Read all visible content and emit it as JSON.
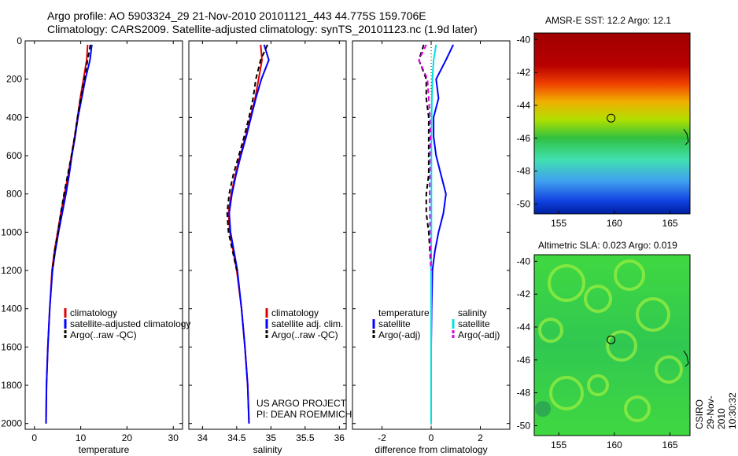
{
  "header": {
    "line1": "Argo profile: AO 5903324_29 21-Nov-2010 20101121_443 44.775S 159.706E",
    "line2": "Climatology: CARS2009. Satellite-adjusted climatology: synTS_20101123.nc (1.9d later)"
  },
  "credit": {
    "project": "US ARGO PROJECT",
    "pi": "PI: DEAN ROEMMICH"
  },
  "side_label": "CSIRO 29-Nov-2010 10:30:32",
  "colors": {
    "climatology": "#e00000",
    "satellite": "#0000ff",
    "argo_temp": "#000000",
    "satellite_sal": "#00e0e0",
    "argo_sal": "#e000e0"
  },
  "depth_ticks": [
    "0",
    "200",
    "400",
    "600",
    "800",
    "1000",
    "1200",
    "1400",
    "1600",
    "1800",
    "2000"
  ],
  "panels": {
    "temperature": {
      "xlabel": "temperature",
      "xticks": [
        "0",
        "10",
        "20",
        "30"
      ],
      "legend": [
        "climatology",
        "satellite-adjusted climatology",
        "Argo(..raw -QC)"
      ]
    },
    "salinity": {
      "xlabel": "salinity",
      "xticks": [
        "34",
        "34.5",
        "35",
        "35.5",
        "36"
      ],
      "legend": [
        "climatology",
        "satellite adj. clim.",
        "Argo(..raw -QC)"
      ]
    },
    "difference": {
      "xlabel": "difference from climatology",
      "xticks": [
        "-2",
        "0",
        "2"
      ],
      "legend_temp_head": "temperature",
      "legend_temp": [
        "satellite",
        "Argo(-adj)"
      ],
      "legend_sal_head": "salinity",
      "legend_sal": [
        "satellite",
        "Argo(-adj)"
      ]
    }
  },
  "maps": {
    "sst": {
      "title": "AMSR-E SST: 12.2 Argo: 12.1",
      "yticks": [
        "-40",
        "-42",
        "-44",
        "-46",
        "-48",
        "-50"
      ],
      "xticks": [
        "155",
        "160",
        "165"
      ]
    },
    "sla": {
      "title": "Altimetric SLA: 0.023 Argo: 0.019",
      "yticks": [
        "-40",
        "-42",
        "-44",
        "-46",
        "-48",
        "-50"
      ],
      "xticks": [
        "155",
        "160",
        "165"
      ]
    }
  },
  "chart_data": [
    {
      "type": "line",
      "ylabel": "",
      "xlabel": "temperature",
      "xlim": [
        -2,
        32
      ],
      "ylim": [
        2030,
        0
      ],
      "series": [
        {
          "name": "climatology",
          "x": [
            11.5,
            11.3,
            10.6,
            9.9,
            9.3,
            8.7,
            8.0,
            7.3,
            6.5,
            5.7,
            5.0,
            4.3,
            3.8,
            3.3,
            2.9,
            2.6,
            2.5
          ],
          "y": [
            20,
            100,
            200,
            300,
            400,
            500,
            600,
            700,
            800,
            900,
            1000,
            1100,
            1200,
            1400,
            1600,
            1800,
            2000
          ]
        },
        {
          "name": "satellite-adjusted climatology",
          "x": [
            12.4,
            12.0,
            11.0,
            10.2,
            9.4,
            8.8,
            8.1,
            7.5,
            6.8,
            6.0,
            5.2,
            4.5,
            3.9,
            3.3,
            2.9,
            2.6,
            2.5
          ],
          "y": [
            20,
            100,
            200,
            300,
            400,
            500,
            600,
            700,
            800,
            900,
            1000,
            1100,
            1200,
            1400,
            1600,
            1800,
            2000
          ]
        },
        {
          "name": "Argo(..raw -QC)",
          "x": [
            12.1,
            11.5,
            10.8,
            10.0,
            9.3,
            8.7,
            8.0,
            7.2,
            6.4,
            5.7,
            5.1,
            4.4,
            3.9
          ],
          "y": [
            20,
            100,
            200,
            300,
            400,
            500,
            600,
            700,
            800,
            900,
            1000,
            1100,
            1200
          ]
        }
      ]
    },
    {
      "type": "line",
      "ylabel": "",
      "xlabel": "salinity",
      "xlim": [
        33.8,
        36.1
      ],
      "ylim": [
        2030,
        0
      ],
      "series": [
        {
          "name": "climatology",
          "x": [
            34.85,
            34.87,
            34.82,
            34.77,
            34.7,
            34.63,
            34.55,
            34.48,
            34.42,
            34.38,
            34.4,
            34.45,
            34.5,
            34.57,
            34.62,
            34.66,
            34.68
          ],
          "y": [
            20,
            100,
            200,
            300,
            400,
            500,
            600,
            700,
            800,
            900,
            1000,
            1100,
            1200,
            1400,
            1600,
            1800,
            2000
          ]
        },
        {
          "name": "satellite adj. clim.",
          "x": [
            34.9,
            34.97,
            34.86,
            34.78,
            34.71,
            34.64,
            34.56,
            34.49,
            34.43,
            34.39,
            34.41,
            34.46,
            34.51,
            34.57,
            34.62,
            34.66,
            34.68
          ],
          "y": [
            20,
            100,
            200,
            300,
            400,
            500,
            600,
            700,
            800,
            900,
            1000,
            1100,
            1200,
            1400,
            1600,
            1800,
            2000
          ]
        },
        {
          "name": "Argo(..raw -QC)",
          "x": [
            34.95,
            34.85,
            34.78,
            34.74,
            34.68,
            34.61,
            34.53,
            34.45,
            34.39,
            34.36,
            34.38,
            34.44,
            34.5
          ],
          "y": [
            20,
            100,
            200,
            300,
            400,
            500,
            600,
            700,
            800,
            900,
            1000,
            1100,
            1200
          ]
        }
      ]
    },
    {
      "type": "line",
      "ylabel": "",
      "xlabel": "difference from climatology",
      "xlim": [
        -3.2,
        3.2
      ],
      "ylim": [
        2030,
        0
      ],
      "series": [
        {
          "name": "temperature satellite",
          "x": [
            0.9,
            0.6,
            0.2,
            0.3,
            0.1,
            0.1,
            0.2,
            0.4,
            0.6,
            0.5,
            0.3,
            0.15,
            0.05,
            0.02,
            0.0,
            0.0,
            0.0
          ],
          "y": [
            20,
            100,
            200,
            300,
            400,
            500,
            600,
            700,
            800,
            900,
            1000,
            1100,
            1200,
            1400,
            1600,
            1800,
            2000
          ]
        },
        {
          "name": "temperature Argo(-adj)",
          "x": [
            -0.3,
            -0.5,
            -0.2,
            -0.2,
            -0.1,
            -0.1,
            -0.1,
            -0.1,
            -0.2,
            -0.2,
            -0.1,
            -0.05,
            0.0
          ],
          "y": [
            20,
            100,
            200,
            300,
            400,
            500,
            600,
            700,
            800,
            900,
            1000,
            1100,
            1200
          ]
        },
        {
          "name": "salinity satellite",
          "x": [
            0.2,
            0.1,
            0.05,
            0.03,
            0.02,
            0.01,
            0.01,
            0.01,
            0.01,
            0.01,
            0.01,
            0.0,
            0.0,
            0.0,
            0.0,
            0.0,
            0.0
          ],
          "y": [
            20,
            100,
            200,
            300,
            400,
            500,
            600,
            700,
            800,
            900,
            1000,
            1100,
            1200,
            1400,
            1600,
            1800,
            2000
          ]
        },
        {
          "name": "salinity Argo(-adj)",
          "x": [
            -0.2,
            -0.5,
            -0.15,
            -0.1,
            -0.05,
            -0.03,
            -0.05,
            -0.05,
            -0.06,
            -0.05,
            -0.05,
            -0.02,
            0.0
          ],
          "y": [
            20,
            100,
            200,
            300,
            400,
            500,
            600,
            700,
            800,
            900,
            1000,
            1100,
            1200
          ]
        }
      ]
    }
  ]
}
